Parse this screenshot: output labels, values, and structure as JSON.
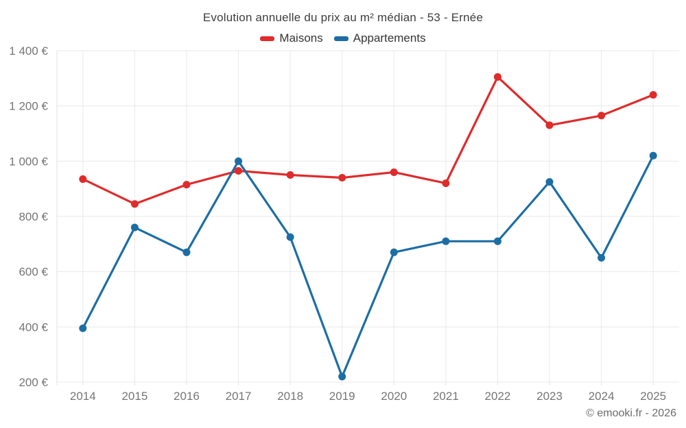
{
  "chart_data": {
    "type": "line",
    "title": "Evolution annuelle du prix au m² médian - 53 - Ernée",
    "categories": [
      "2014",
      "2015",
      "2016",
      "2017",
      "2018",
      "2019",
      "2020",
      "2021",
      "2022",
      "2023",
      "2024",
      "2025"
    ],
    "series": [
      {
        "name": "Maisons",
        "color": "#df2b2b",
        "values": [
          935,
          845,
          915,
          965,
          950,
          940,
          960,
          920,
          1305,
          1130,
          1165,
          1240
        ]
      },
      {
        "name": "Appartements",
        "color": "#1c6ea4",
        "values": [
          395,
          760,
          670,
          1000,
          725,
          220,
          670,
          710,
          710,
          925,
          650,
          1020
        ]
      }
    ],
    "ylabel": "",
    "xlabel": "",
    "ylim": [
      200,
      1400
    ],
    "y_tick_step": 200,
    "y_tick_labels": [
      "200 €",
      "400 €",
      "600 €",
      "800 €",
      "1 000 €",
      "1 200 €",
      "1 400 €"
    ],
    "grid": true,
    "legend_position": "top"
  },
  "footer": {
    "text": "© emooki.fr - 2026"
  },
  "colors": {
    "grid": "#e9e9e9",
    "axis": "#e0e0e0",
    "tick_text": "#757575",
    "title_text": "#3d3d3d"
  }
}
